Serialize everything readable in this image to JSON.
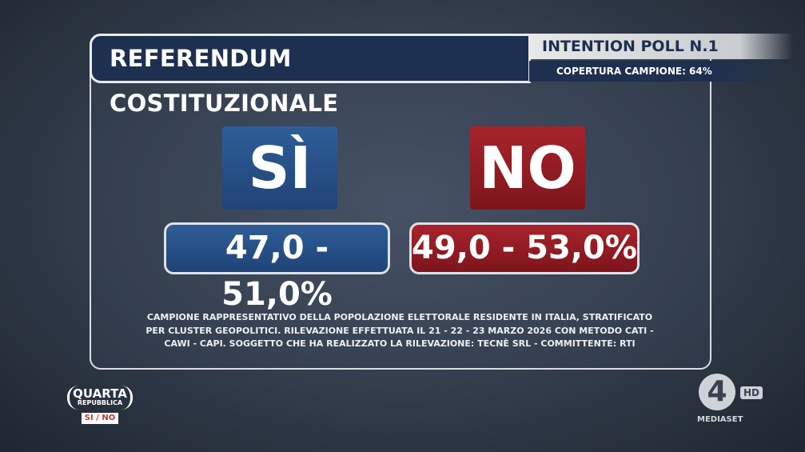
{
  "header": {
    "title": "REFERENDUM COSTITUZIONALE",
    "poll_name": "INTENTION POLL N.1",
    "coverage": "COPERTURA CAMPIONE: 64%"
  },
  "options": [
    {
      "label": "SÌ",
      "range": "47,0 - 51,0%"
    },
    {
      "label": "NO",
      "range": "49,0 - 53,0%"
    }
  ],
  "note": {
    "lines": [
      "CAMPIONE RAPPRESENTATIVO DELLA POPOLAZIONE ELETTORALE RESIDENTE IN ITALIA, STRATIFICATO",
      "PER CLUSTER GEOPOLITICI. RILEVAZIONE EFFETTUATA IL 21 - 22 - 23 MARZO 2026 CON METODO CATI -",
      "CAWI - CAPI. SOGGETTO CHE HA REALIZZATO LA RILEVAZIONE: TECNÈ SRL - COMMITTENTE: RTI"
    ]
  },
  "show_logo": {
    "line1": "QUARTA",
    "line2": "REPUBBLICA",
    "tag": "SI / NO"
  },
  "channel_logo": {
    "number": "4",
    "badge": "HD",
    "network": "MEDIASET"
  }
}
